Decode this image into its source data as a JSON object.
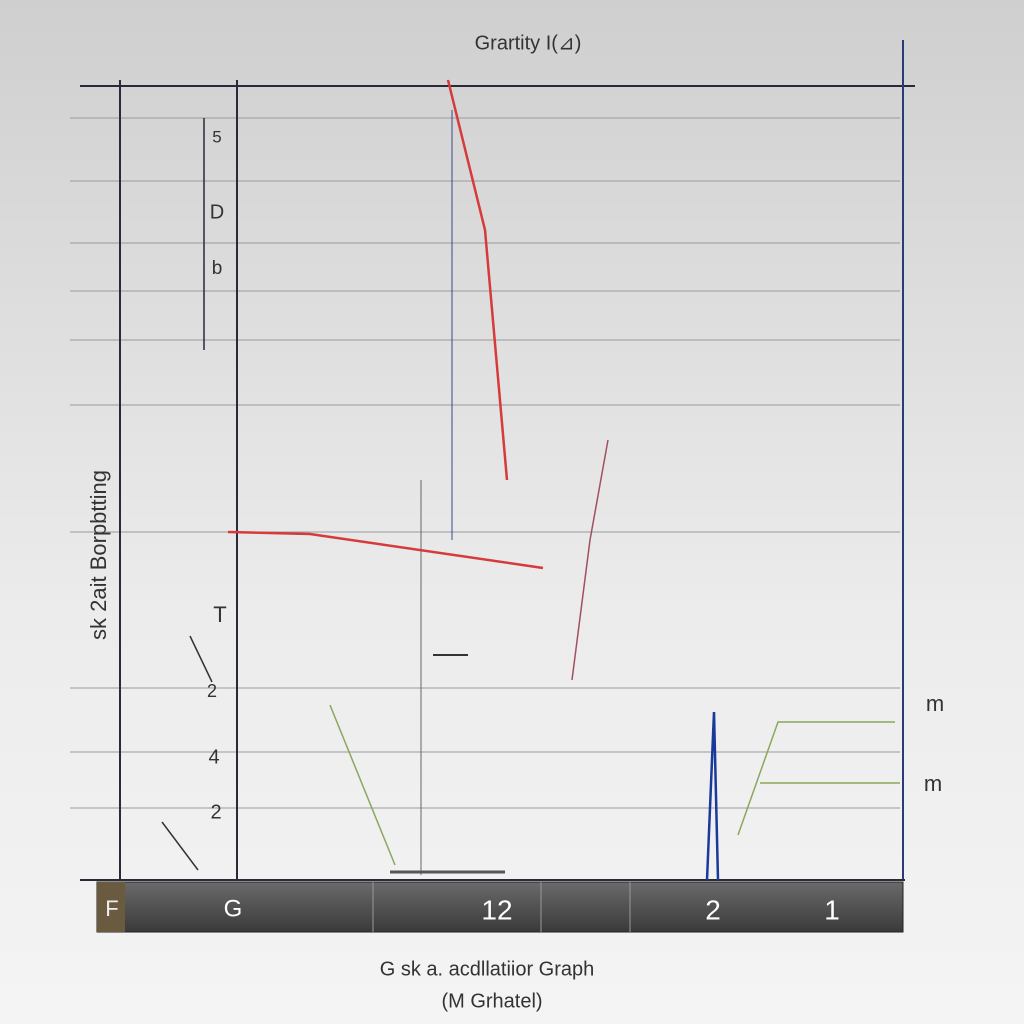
{
  "header": {
    "title": "Grartity I(⊿)"
  },
  "axis": {
    "left_label": "sk 2ait Borpbtting",
    "left_ticks": [
      "5",
      "D",
      "b",
      "T",
      "2",
      "4",
      "2"
    ],
    "right_ticks": [
      "m",
      "m"
    ]
  },
  "bar": {
    "cells": [
      "F",
      "G",
      "12",
      "2",
      "1"
    ]
  },
  "footer": {
    "caption": "G sk a. acdllatiior Graph",
    "subcaption": "(M Grhatel)"
  }
}
